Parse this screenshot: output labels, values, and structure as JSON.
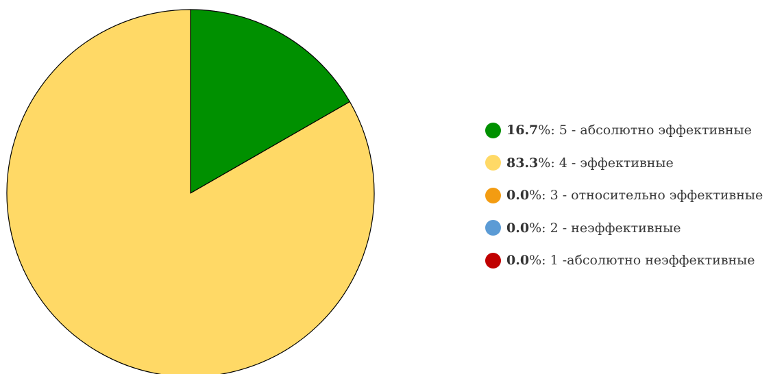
{
  "chart_data": {
    "type": "pie",
    "unit": "%",
    "label_separator": ": ",
    "slices": [
      {
        "value_text": "16.7",
        "value": 16.7,
        "label": "5 - абсолютно эффективные",
        "color": "#009000"
      },
      {
        "value_text": "83.3",
        "value": 83.3,
        "label": "4 - эффективные",
        "color": "#FFD966"
      },
      {
        "value_text": "0.0",
        "value": 0.0,
        "label": "3 - относительно эффективные",
        "color": "#F39C12"
      },
      {
        "value_text": "0.0",
        "value": 0.0,
        "label": "2 - неэффективные",
        "color": "#5B9BD5"
      },
      {
        "value_text": "0.0",
        "value": 0.0,
        "label": "1 -абсолютно неэффективные",
        "color": "#C00000"
      }
    ],
    "legend_position": "right",
    "slice_border_color": "#000000"
  }
}
